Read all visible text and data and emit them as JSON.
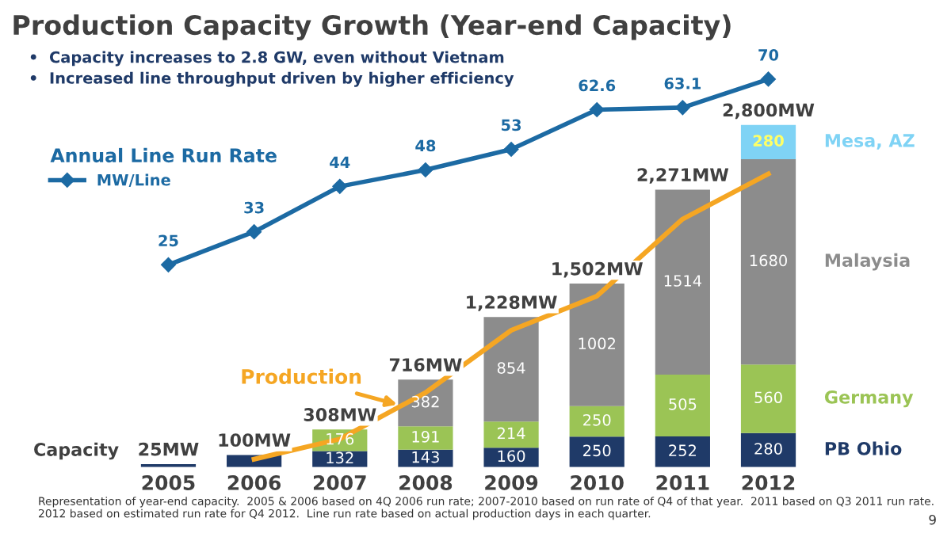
{
  "chart_data": {
    "type": "bar",
    "title": "Production Capacity Growth (Year-end Capacity)",
    "subtitle": "•  Capacity increases to 2.8 GW, even without Vietnam\n•  Increased line throughput driven by higher efficiency",
    "categories": [
      "2005",
      "2006",
      "2007",
      "2008",
      "2009",
      "2010",
      "2011",
      "2012"
    ],
    "stacked": true,
    "tick_labels": "x",
    "legend": "left",
    "legend_title": "Annual Line Run Rate",
    "series": [
      {
        "name": "PB Ohio",
        "color": "#1f3a68",
        "values": [
          25,
          100,
          132,
          143,
          160,
          250,
          252,
          280
        ],
        "value_labels": [
          null,
          null,
          "132",
          "143",
          "160",
          "250",
          "252",
          "280"
        ]
      },
      {
        "name": "Germany",
        "color": "#9bc455",
        "values": [
          null,
          null,
          176,
          191,
          214,
          250,
          505,
          560
        ],
        "value_labels": [
          null,
          null,
          "176",
          "191",
          "214",
          "250",
          "505",
          "560"
        ]
      },
      {
        "name": "Malaysia",
        "color": "#8c8c8c",
        "values": [
          null,
          null,
          null,
          382,
          854,
          1002,
          1514,
          1680
        ],
        "value_labels": [
          null,
          null,
          null,
          "382",
          "854",
          "1002",
          "1514",
          "1680"
        ]
      },
      {
        "name": "Mesa, AZ",
        "color": "#7fd3f5",
        "values": [
          null,
          null,
          null,
          null,
          null,
          null,
          null,
          280
        ],
        "value_labels": [
          null,
          null,
          null,
          null,
          null,
          null,
          null,
          "280"
        ]
      },
      {
        "name": "Production",
        "type": "line",
        "color": "#f5a623",
        "values": [
          null,
          65,
          230,
          610,
          1120,
          1400,
          2030,
          2400
        ]
      },
      {
        "name": "MW/Line",
        "type": "line",
        "axis": "y2",
        "marker": "diamond",
        "color": "#1c6aa3",
        "values": [
          25,
          33,
          44,
          48,
          53,
          62.6,
          63.1,
          70
        ],
        "value_labels": [
          "25",
          "33",
          "44",
          "48",
          "53",
          "62.6",
          "63.1",
          "70"
        ]
      }
    ],
    "totals": [
      "25MW",
      "100MW",
      "308MW",
      "716MW",
      "1,228MW",
      "1,502MW",
      "2,271MW",
      "2,800MW"
    ],
    "annotations": [
      "Capacity",
      "Representation of year-end capacity.  2005 & 2006 based on 4Q 2006 run rate; 2007-2010 based on run rate of Q4 of that year.  2011 based on Q3 2011 run rate.  2012 based on estimated run rate for Q4 2012.  Line run rate based on actual production days in each quarter.",
      "9"
    ]
  }
}
